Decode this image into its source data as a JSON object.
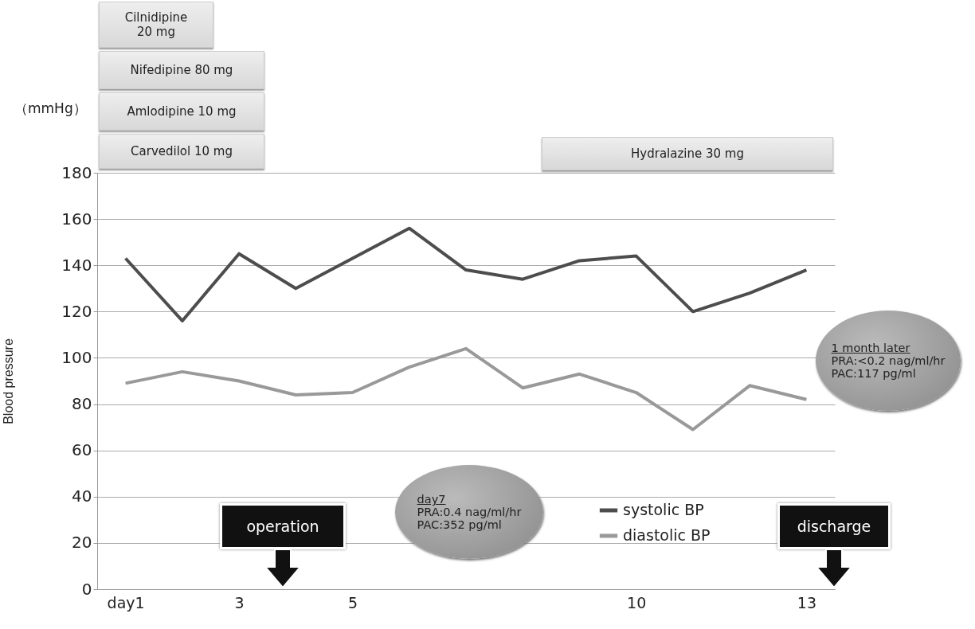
{
  "chart_data": {
    "type": "line",
    "ylabel": "Blood pressure",
    "categories": [
      "day1",
      null,
      "3",
      null,
      "5",
      null,
      null,
      null,
      null,
      "10",
      null,
      null,
      "13"
    ],
    "series": [
      {
        "name": "systolic BP",
        "color": "#4d4d4d",
        "values": [
          143,
          116,
          145,
          130,
          143,
          156,
          138,
          134,
          142,
          144,
          120,
          128,
          138
        ]
      },
      {
        "name": "diastolic BP",
        "color": "#999999",
        "values": [
          89,
          94,
          90,
          84,
          85,
          96,
          104,
          87,
          93,
          85,
          69,
          88,
          82
        ]
      }
    ],
    "ylim": [
      0,
      180
    ],
    "yticks": [
      0,
      20,
      40,
      60,
      80,
      100,
      120,
      140,
      160,
      180
    ],
    "grid": "y",
    "legend": "bottom",
    "annotations": [
      "Cilnidipine\n20 mg",
      "Nifedipine 80 mg",
      "（mmHg）",
      "Amlodipine 10 mg",
      "Carvedilol 10 mg",
      "Hydralazine 30 mg",
      "day7\nPRA:0.4 nag/ml/hr\nPAC:352 pg/ml",
      "1 month later\nPRA:<0.2 nag/ml/hr\nPAC:117 pg/ml",
      "operation",
      "discharge"
    ]
  }
}
